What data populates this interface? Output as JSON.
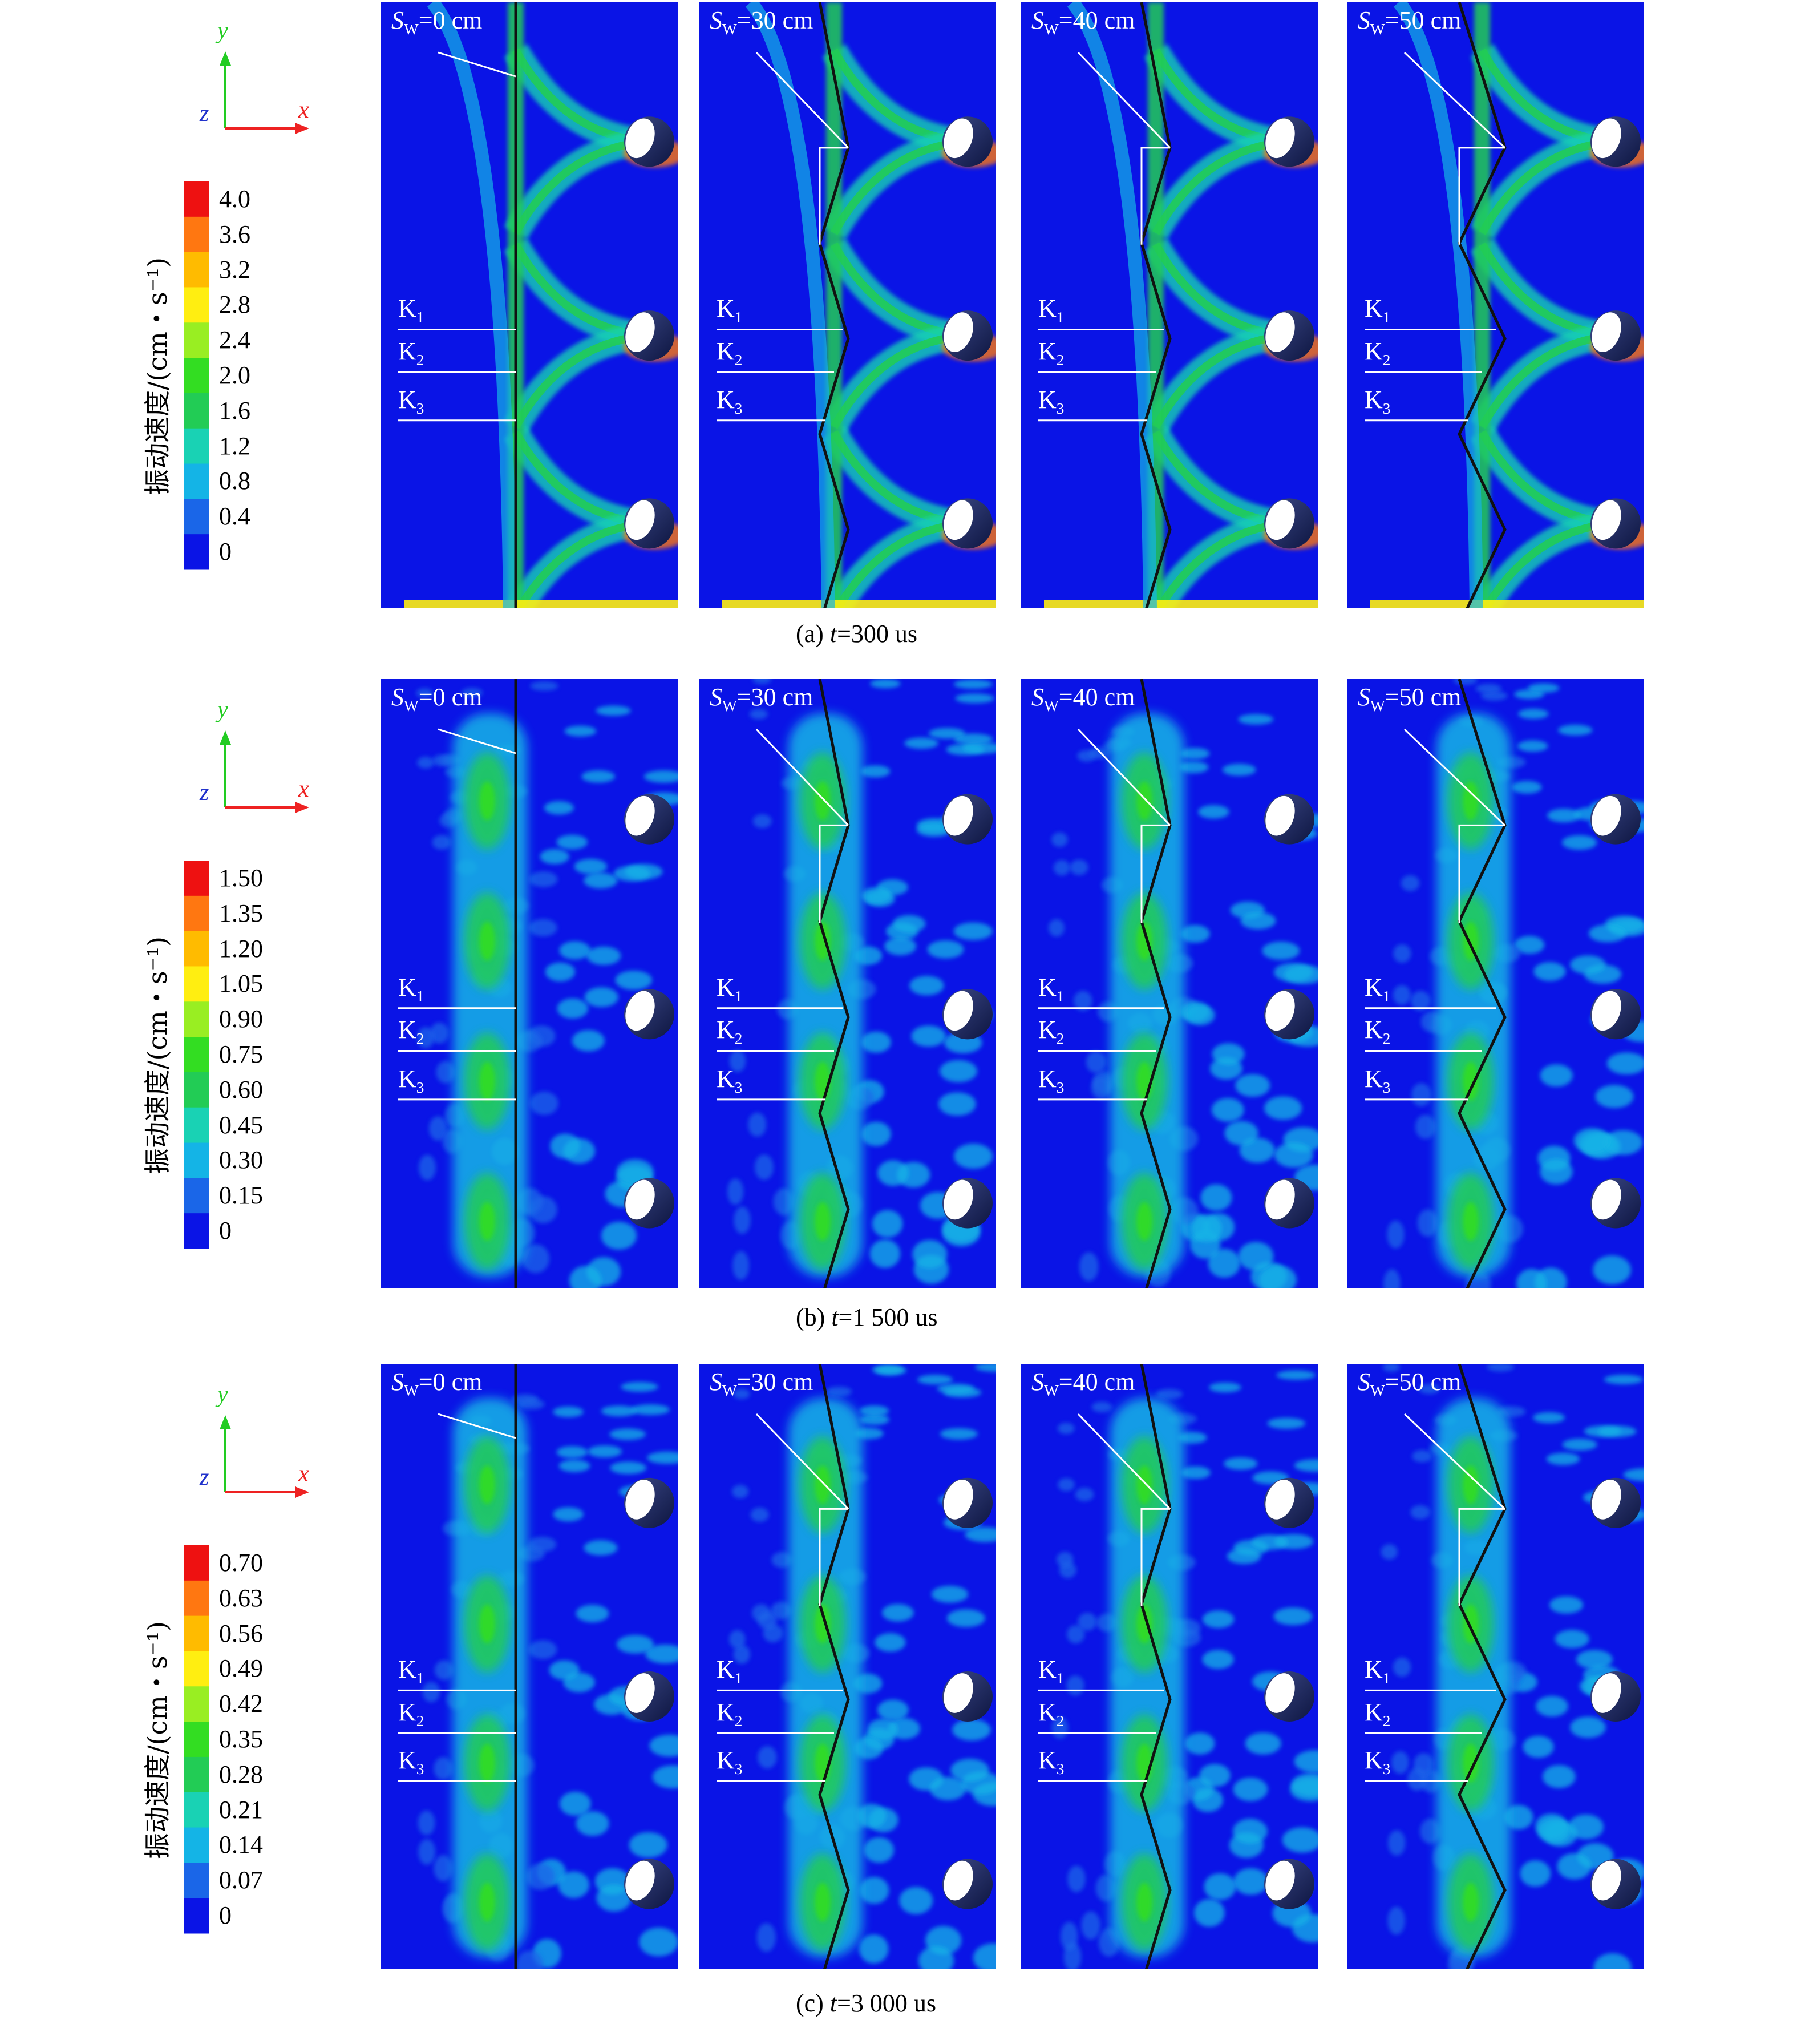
{
  "colorbar_title": "振动速度/(cm・s⁻¹)",
  "axes": {
    "y": "y",
    "z": "z",
    "x": "x",
    "colors": {
      "y": "#22cc22",
      "z": "#2233cc",
      "x": "#ee2222"
    }
  },
  "sw_values": [
    "0 cm",
    "30 cm",
    "40 cm",
    "50 cm"
  ],
  "sw_prefix": "S",
  "sw_sub": "W",
  "k_labels": [
    "K",
    "K",
    "K"
  ],
  "k_subs": [
    "1",
    "2",
    "3"
  ],
  "color_scale": [
    "#0a14e6",
    "#1a66e8",
    "#14b4e6",
    "#19d2b4",
    "#22cc55",
    "#33dd22",
    "#99ee22",
    "#ffee11",
    "#ffbb00",
    "#ff7711",
    "#ee1111"
  ],
  "rows": [
    {
      "caption_prefix": "(a) ",
      "caption_var": "t",
      "caption_rest": "=300 us",
      "scale_labels": [
        "4.0",
        "3.6",
        "3.2",
        "2.8",
        "2.4",
        "2.0",
        "1.6",
        "1.2",
        "0.8",
        "0.4",
        "0"
      ]
    },
    {
      "caption_prefix": "(b) ",
      "caption_var": "t",
      "caption_rest": "=1 500 us",
      "scale_labels": [
        "1.50",
        "1.35",
        "1.20",
        "1.05",
        "0.90",
        "0.75",
        "0.60",
        "0.45",
        "0.30",
        "0.15",
        "0"
      ]
    },
    {
      "caption_prefix": "(c) ",
      "caption_var": "t",
      "caption_rest": "=3 000 us",
      "scale_labels": [
        "0.70",
        "0.63",
        "0.56",
        "0.49",
        "0.42",
        "0.35",
        "0.28",
        "0.21",
        "0.14",
        "0.07",
        "0"
      ]
    }
  ]
}
